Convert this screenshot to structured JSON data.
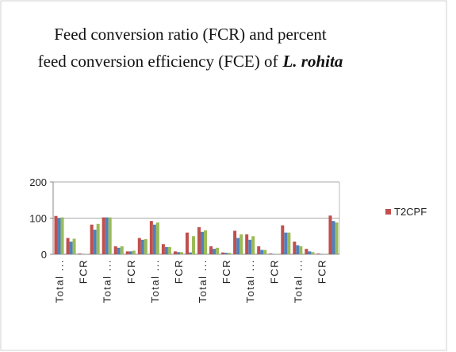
{
  "chart_data": {
    "type": "bar",
    "title": [
      "Feed conversion ratio (FCR) and percent",
      "feed conversion efficiency (FCE) of",
      "L. rohita"
    ],
    "categories": [
      "Total ...",
      null,
      "FCR",
      null,
      "Total ...",
      null,
      "FCR",
      null,
      "Total ...",
      null,
      "FCR",
      null,
      "Total ...",
      null,
      "FCR",
      null,
      "Total ...",
      null,
      "FCR",
      null,
      "Total ...",
      null,
      "FCR",
      null
    ],
    "series": [
      {
        "name": "T2CPF",
        "color": "#c0504d",
        "values": [
          106,
          45,
          2,
          82,
          102,
          22,
          8,
          45,
          92,
          28,
          8,
          60,
          75,
          22,
          5,
          65,
          55,
          22,
          2,
          80,
          35,
          15,
          2,
          107
        ]
      },
      {
        "color": "#4f81bd",
        "values": [
          100,
          35,
          1,
          68,
          102,
          18,
          8,
          40,
          82,
          20,
          6,
          5,
          62,
          15,
          4,
          45,
          40,
          12,
          1,
          60,
          25,
          8,
          1,
          92
        ]
      },
      {
        "color": "#9bbb59",
        "values": [
          102,
          43,
          1,
          84,
          102,
          22,
          10,
          42,
          88,
          20,
          6,
          50,
          66,
          18,
          4,
          55,
          50,
          12,
          1,
          60,
          22,
          6,
          1,
          88
        ]
      }
    ],
    "ylim": [
      0,
      200
    ],
    "yticks": [
      0,
      100,
      200
    ],
    "grid": true
  }
}
